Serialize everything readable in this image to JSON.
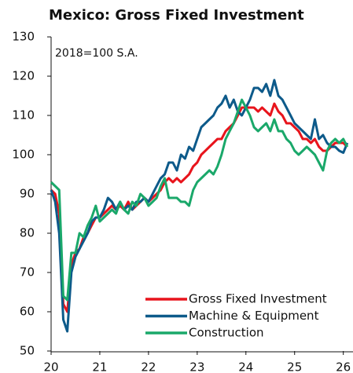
{
  "chart_data": {
    "type": "line",
    "title": "Mexico: Gross Fixed Investment",
    "annotation": "2018=100 S.A.",
    "x": [
      0,
      1,
      2,
      3,
      4,
      5,
      6,
      7,
      8,
      9,
      10,
      11,
      12,
      13,
      14,
      15,
      16,
      17,
      18,
      19,
      20,
      21,
      22,
      23,
      24,
      25,
      26,
      27,
      28,
      29,
      30,
      31,
      32,
      33,
      34,
      35,
      36,
      37,
      38,
      39,
      40,
      41,
      42,
      43,
      44,
      45,
      46,
      47,
      48,
      49,
      50,
      51,
      52,
      53,
      54,
      55,
      56,
      57,
      58,
      59,
      60,
      61,
      62,
      63,
      64,
      65,
      66,
      67,
      68,
      69,
      70,
      71,
      72,
      73
    ],
    "series": [
      {
        "name": "Gross Fixed Investment",
        "color": "#e8141c",
        "values": [
          91,
          90,
          85,
          62,
          60,
          72,
          75,
          76,
          79,
          80,
          82,
          84,
          84,
          85,
          86,
          87,
          86,
          87,
          86,
          88,
          86,
          87,
          88,
          89,
          88,
          89,
          90,
          91,
          93,
          94,
          93,
          94,
          93,
          94,
          95,
          97,
          98,
          100,
          101,
          102,
          103,
          104,
          104,
          106,
          107,
          108,
          110,
          112,
          112,
          112,
          112,
          111,
          112,
          111,
          110,
          113,
          111,
          110,
          108,
          108,
          107,
          106,
          104,
          104,
          103,
          104,
          102,
          101,
          101,
          102,
          103,
          103,
          103,
          102
        ]
      },
      {
        "name": "Machine & Equipment",
        "color": "#0d5a8a",
        "values": [
          91,
          88,
          80,
          58,
          55,
          70,
          74,
          76,
          78,
          80,
          83,
          84,
          84,
          86,
          89,
          88,
          86,
          88,
          86,
          87,
          86,
          88,
          88,
          89,
          88,
          90,
          92,
          94,
          95,
          98,
          98,
          96,
          100,
          99,
          102,
          101,
          104,
          107,
          108,
          109,
          110,
          112,
          113,
          115,
          112,
          114,
          111,
          110,
          112,
          114,
          117,
          117,
          116,
          118,
          115,
          119,
          115,
          114,
          112,
          110,
          108,
          107,
          106,
          105,
          104,
          109,
          104,
          105,
          103,
          102,
          102,
          101,
          100.5,
          103
        ]
      },
      {
        "name": "Construction",
        "color": "#1aa86a",
        "values": [
          93,
          92,
          91,
          64,
          63,
          75,
          75,
          80,
          79,
          82,
          84,
          87,
          83,
          84,
          85,
          86,
          85,
          88,
          86,
          85,
          88,
          87,
          90,
          89,
          87,
          88,
          89,
          92,
          94,
          89,
          89,
          89,
          88,
          88,
          87,
          91,
          93,
          94,
          95,
          96,
          95,
          97,
          100,
          104,
          106,
          108,
          111,
          114,
          112,
          110,
          107,
          106,
          107,
          108,
          106,
          109,
          106,
          106,
          104,
          103,
          101,
          100,
          101,
          102,
          101,
          100,
          98,
          96,
          101,
          103,
          104,
          103,
          104,
          102
        ]
      }
    ],
    "xlim": [
      0,
      74
    ],
    "xticks": [
      {
        "value": 0,
        "label": "20"
      },
      {
        "value": 12,
        "label": "21"
      },
      {
        "value": 24,
        "label": "22"
      },
      {
        "value": 36,
        "label": "23"
      },
      {
        "value": 48,
        "label": "24"
      },
      {
        "value": 60,
        "label": "25"
      },
      {
        "value": 72,
        "label": "26"
      }
    ],
    "ylim": [
      50,
      130
    ],
    "yticks": [
      50,
      60,
      70,
      80,
      90,
      100,
      110,
      120,
      130
    ],
    "legend": "lower right"
  }
}
